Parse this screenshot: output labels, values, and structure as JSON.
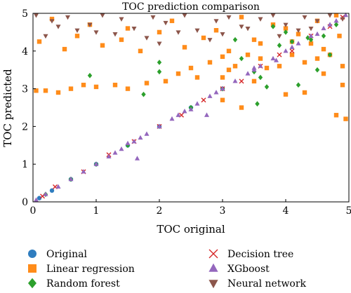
{
  "chart_data": {
    "type": "scatter",
    "title": "TOC prediction comparison",
    "xlabel": "TOC original",
    "ylabel": "TOC predicted",
    "xlim": [
      0,
      5
    ],
    "ylim": [
      0,
      5
    ],
    "xticks": [
      "0",
      "1",
      "2",
      "3",
      "4",
      "5"
    ],
    "yticks": [
      "0",
      "1",
      "2",
      "3",
      "4",
      "5"
    ],
    "grid": false,
    "legend_position": "bottom",
    "series": [
      {
        "name": "Original",
        "marker": "circle",
        "color": "#2f7dbf",
        "x": [
          0.1,
          0.3,
          0.6,
          1.0,
          1.5,
          2.0,
          2.5,
          3.0
        ],
        "y": [
          0.1,
          0.3,
          0.6,
          1.0,
          1.5,
          2.0,
          2.5,
          3.0
        ]
      },
      {
        "name": "Linear regression",
        "marker": "square",
        "color": "#ff8c1a",
        "x": [
          0.05,
          0.2,
          0.4,
          0.6,
          0.8,
          1.0,
          1.3,
          1.5,
          1.8,
          2.1,
          2.3,
          2.5,
          2.6,
          2.8,
          3.0,
          3.0,
          3.1,
          3.2,
          3.4,
          3.6,
          3.7,
          3.9,
          4.1,
          4.3,
          4.5,
          4.6,
          4.7,
          4.9,
          4.95,
          0.3,
          0.9,
          1.5,
          2.2,
          2.9,
          3.3,
          3.8,
          4.2,
          4.5,
          4.8,
          0.1,
          0.7,
          1.4,
          2.0,
          2.7,
          3.5,
          4.0,
          4.4,
          4.85,
          0.5,
          1.1,
          1.7,
          2.4,
          3.1,
          3.6,
          4.1,
          4.6,
          3.0,
          3.3,
          3.5,
          4.0,
          4.3,
          4.8,
          4.9
        ],
        "y": [
          2.95,
          2.95,
          2.9,
          3.0,
          3.1,
          3.05,
          3.1,
          3.0,
          3.15,
          3.2,
          3.4,
          3.55,
          3.3,
          3.7,
          3.85,
          3.3,
          3.5,
          3.6,
          3.9,
          3.8,
          3.55,
          3.6,
          3.9,
          3.7,
          3.8,
          3.4,
          3.9,
          3.6,
          2.2,
          4.85,
          4.7,
          4.6,
          4.8,
          4.55,
          4.9,
          4.7,
          4.45,
          4.8,
          4.95,
          4.25,
          4.4,
          4.3,
          4.5,
          4.35,
          4.3,
          4.6,
          4.2,
          4.4,
          4.05,
          4.15,
          4.0,
          4.1,
          4.0,
          4.2,
          4.25,
          4.05,
          2.7,
          2.5,
          3.2,
          2.85,
          2.9,
          2.3,
          3.1
        ]
      },
      {
        "name": "Random forest",
        "marker": "diamond",
        "color": "#2ca02c",
        "x": [
          0.2,
          0.6,
          1.0,
          1.5,
          1.75,
          2.0,
          2.5,
          3.0,
          3.3,
          3.55,
          3.6,
          3.8,
          4.0,
          4.2,
          4.35,
          4.5,
          4.6,
          4.7,
          4.8,
          0.9,
          2.0,
          3.9,
          4.1,
          3.5,
          3.2,
          4.4,
          3.7
        ],
        "y": [
          0.2,
          0.6,
          1.0,
          1.5,
          2.85,
          3.7,
          2.5,
          3.0,
          3.8,
          2.6,
          3.3,
          4.65,
          4.5,
          3.1,
          4.35,
          3.5,
          4.4,
          3.9,
          4.7,
          3.35,
          3.45,
          4.15,
          4.25,
          3.45,
          4.3,
          4.3,
          3.05
        ]
      },
      {
        "name": "Decision tree",
        "marker": "x",
        "color": "#d62728",
        "x": [
          0.15,
          0.35,
          0.8,
          1.2,
          1.6,
          2.0,
          2.35,
          2.7,
          3.0,
          3.3,
          3.6,
          3.9,
          4.1,
          4.4,
          4.7,
          4.9
        ],
        "y": [
          0.15,
          0.4,
          0.8,
          1.25,
          1.6,
          2.0,
          2.3,
          2.7,
          3.0,
          3.2,
          3.6,
          3.9,
          4.0,
          4.4,
          4.65,
          4.9
        ]
      },
      {
        "name": "XGboost",
        "marker": "triangle-up",
        "color": "#9467bd",
        "x": [
          0.05,
          0.2,
          0.4,
          0.6,
          0.8,
          1.0,
          1.2,
          1.4,
          1.6,
          1.8,
          2.0,
          2.2,
          2.4,
          2.6,
          2.8,
          3.0,
          3.2,
          3.4,
          3.6,
          3.8,
          4.0,
          4.2,
          4.4,
          4.6,
          4.8,
          4.95,
          1.3,
          1.7,
          2.3,
          2.9,
          3.5,
          4.1,
          4.7,
          1.5,
          2.5,
          3.5,
          4.5,
          1.65,
          2.75,
          3.85
        ],
        "y": [
          0.05,
          0.2,
          0.4,
          0.6,
          0.8,
          1.0,
          1.2,
          1.4,
          1.6,
          1.8,
          2.0,
          2.2,
          2.4,
          2.6,
          2.8,
          3.0,
          3.2,
          3.4,
          3.6,
          3.8,
          4.0,
          4.2,
          4.4,
          4.6,
          4.8,
          4.95,
          1.3,
          1.7,
          2.3,
          2.9,
          3.5,
          4.1,
          4.7,
          1.55,
          2.45,
          3.55,
          4.45,
          1.15,
          2.3,
          3.75
        ]
      },
      {
        "name": "Neural network",
        "marker": "triangle-down",
        "color": "#8c564b",
        "x": [
          0.05,
          0.3,
          0.55,
          0.9,
          1.1,
          1.4,
          1.6,
          1.9,
          2.1,
          2.4,
          2.6,
          2.9,
          3.1,
          3.3,
          3.6,
          3.8,
          4.0,
          4.3,
          4.5,
          4.7,
          0.2,
          0.7,
          1.3,
          1.8,
          2.3,
          2.8,
          3.4,
          3.9,
          4.4,
          4.9,
          0.4,
          1.0,
          2.0,
          3.0,
          4.2
        ],
        "y": [
          4.95,
          4.8,
          4.9,
          4.7,
          4.95,
          4.85,
          4.6,
          4.9,
          4.75,
          4.95,
          4.55,
          4.8,
          4.9,
          4.65,
          4.85,
          4.95,
          4.7,
          4.9,
          4.8,
          4.95,
          4.4,
          4.55,
          4.45,
          4.35,
          4.5,
          4.3,
          4.6,
          4.4,
          4.6,
          4.85,
          4.65,
          4.5,
          4.2,
          4.45,
          4.55
        ]
      }
    ]
  }
}
